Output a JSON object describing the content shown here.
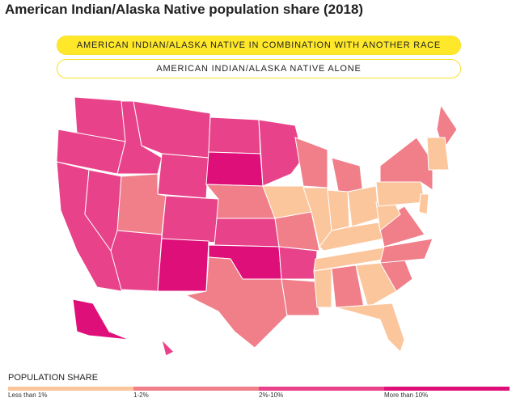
{
  "header": {
    "title": "American Indian/Alaska Native population share (2018)"
  },
  "toggles": [
    {
      "label": "AMERICAN INDIAN/ALASKA NATIVE IN COMBINATION WITH ANOTHER RACE",
      "active": true
    },
    {
      "label": "AMERICAN INDIAN/ALASKA NATIVE ALONE",
      "active": false
    }
  ],
  "legend": {
    "title": "POPULATION SHARE",
    "items": [
      {
        "label": "Less than 1%",
        "color": "#fcc69c"
      },
      {
        "label": "1-2%",
        "color": "#f07f8a"
      },
      {
        "label": "2%-10%",
        "color": "#e8438a"
      },
      {
        "label": "More than 10%",
        "color": "#df0f7a"
      }
    ]
  }
}
